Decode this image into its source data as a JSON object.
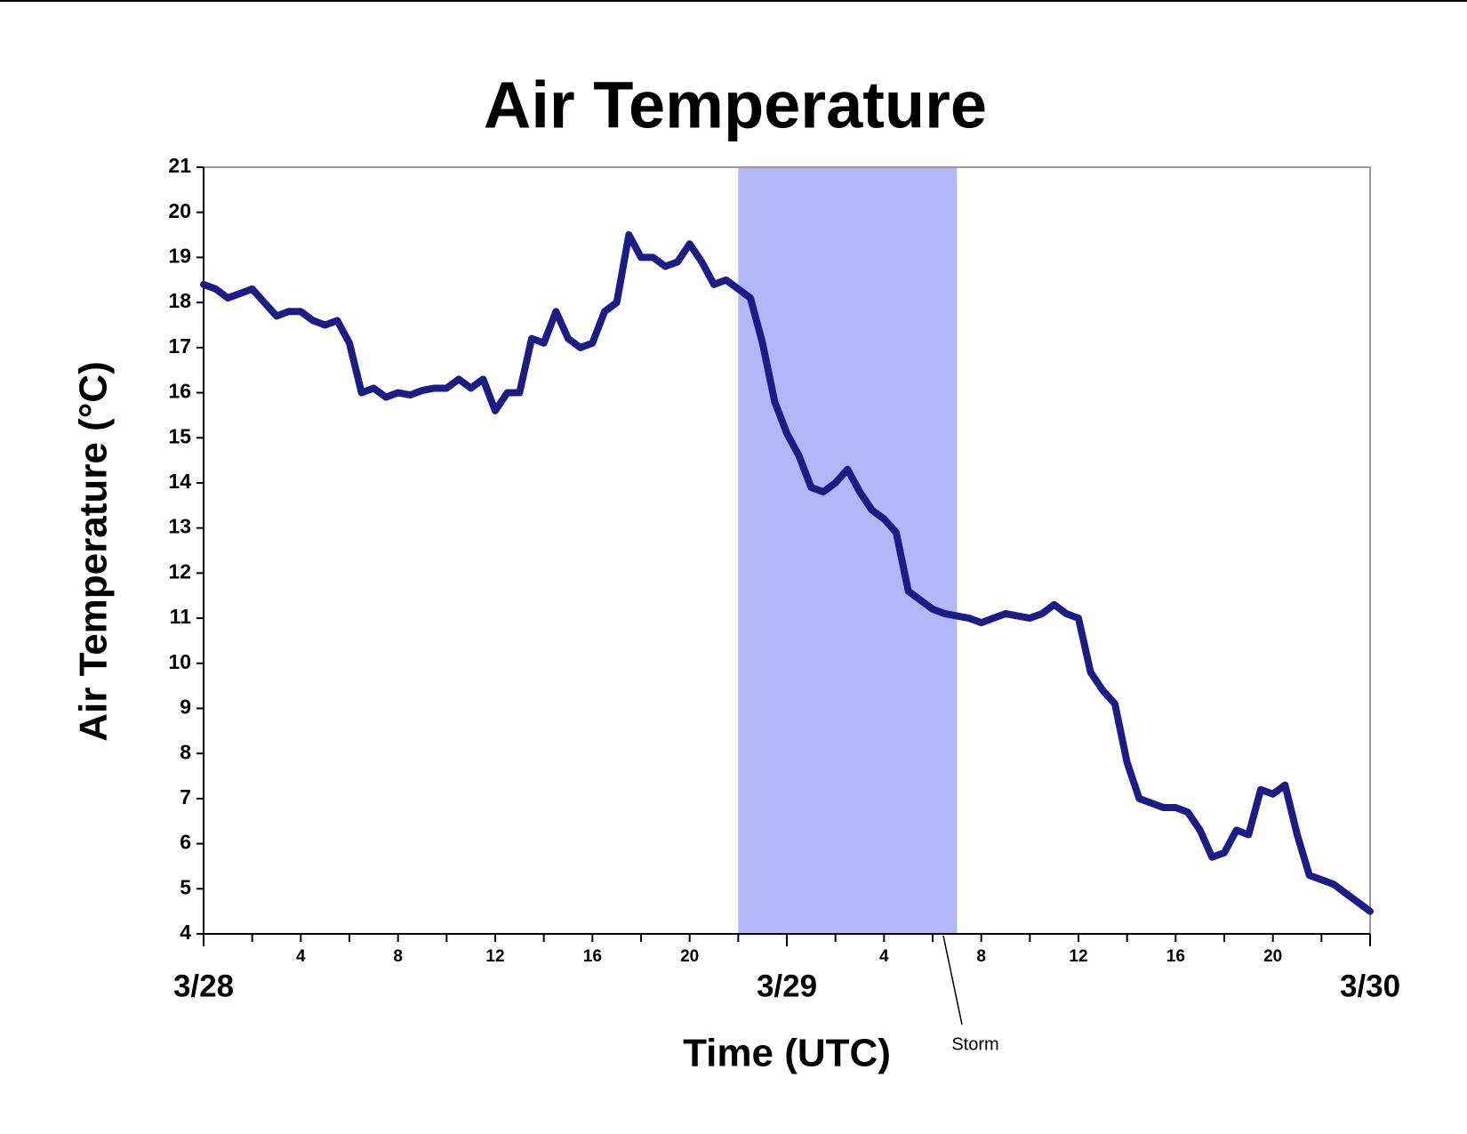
{
  "chart_data": {
    "type": "line",
    "title": "Air Temperature",
    "xlabel": "Time (UTC)",
    "ylabel": "Air Temperature (°C)",
    "x": [
      0,
      0.5,
      1,
      1.5,
      2,
      2.5,
      3,
      3.5,
      4,
      4.5,
      5,
      5.5,
      6,
      6.5,
      7,
      7.5,
      8,
      8.5,
      9,
      9.5,
      10,
      10.5,
      11,
      11.5,
      12,
      12.5,
      13,
      13.5,
      14,
      14.5,
      15,
      15.5,
      16,
      16.5,
      17,
      17.5,
      18,
      18.5,
      19,
      19.5,
      20,
      20.5,
      21,
      21.5,
      22,
      22.5,
      23,
      23.5,
      24,
      24.5,
      25,
      25.5,
      26,
      26.5,
      27,
      27.5,
      28,
      28.5,
      29,
      29.5,
      30,
      30.5,
      31,
      31.5,
      32,
      32.5,
      33,
      33.5,
      34,
      34.5,
      35,
      35.5,
      36,
      36.5,
      37,
      37.5,
      38,
      38.5,
      39,
      39.5,
      40,
      40.5,
      41,
      41.5,
      42,
      42.5,
      43,
      43.5,
      44,
      44.5,
      45,
      45.5,
      46,
      46.5,
      47,
      47.5,
      48
    ],
    "series": [
      {
        "name": "Air Temperature",
        "color": "#1c1c84",
        "values": [
          18.4,
          18.3,
          18.1,
          18.2,
          18.3,
          18.0,
          17.7,
          17.8,
          17.8,
          17.6,
          17.5,
          17.6,
          17.1,
          16.0,
          16.1,
          15.9,
          16.0,
          15.95,
          16.05,
          16.1,
          16.1,
          16.3,
          16.1,
          16.3,
          15.6,
          16.0,
          16.0,
          17.2,
          17.1,
          17.8,
          17.2,
          17.0,
          17.1,
          17.8,
          18.0,
          19.5,
          19.0,
          19.0,
          18.8,
          18.9,
          19.3,
          18.9,
          18.4,
          18.5,
          18.3,
          18.1,
          17.1,
          15.8,
          15.1,
          14.6,
          13.9,
          13.8,
          14.0,
          14.3,
          13.8,
          13.4,
          13.2,
          12.9,
          11.6,
          11.4,
          11.2,
          11.1,
          11.05,
          11.0,
          10.9,
          11.0,
          11.1,
          11.05,
          11.0,
          11.1,
          11.3,
          11.1,
          11.0,
          9.8,
          9.4,
          9.1,
          7.8,
          7.0,
          6.9,
          6.8,
          6.8,
          6.7,
          6.3,
          5.7,
          5.8,
          6.3,
          6.2,
          7.2,
          7.1,
          7.3,
          6.2,
          5.3,
          5.2,
          5.1,
          4.9,
          4.7,
          4.5
        ]
      }
    ],
    "xlim": [
      0,
      48
    ],
    "ylim": [
      4,
      21
    ],
    "yticks": [
      4,
      5,
      6,
      7,
      8,
      9,
      10,
      11,
      12,
      13,
      14,
      15,
      16,
      17,
      18,
      19,
      20,
      21
    ],
    "xticks": [
      4,
      8,
      12,
      16,
      20,
      {
        "value": 28,
        "label": "4"
      },
      {
        "value": 32,
        "label": "8"
      },
      {
        "value": 36,
        "label": "12"
      },
      {
        "value": 40,
        "label": "16"
      },
      {
        "value": 44,
        "label": "20"
      }
    ],
    "xticks_minor": [
      2,
      6,
      10,
      14,
      18,
      22,
      26,
      30,
      34,
      38,
      42,
      46
    ],
    "date_ticks": [
      {
        "value": 0,
        "label": "3/28"
      },
      {
        "value": 24,
        "label": "3/29"
      },
      {
        "value": 48,
        "label": "3/30"
      }
    ],
    "shade": {
      "start": 22,
      "end": 31,
      "color": "#b4b6fa",
      "label": "Storm"
    }
  }
}
